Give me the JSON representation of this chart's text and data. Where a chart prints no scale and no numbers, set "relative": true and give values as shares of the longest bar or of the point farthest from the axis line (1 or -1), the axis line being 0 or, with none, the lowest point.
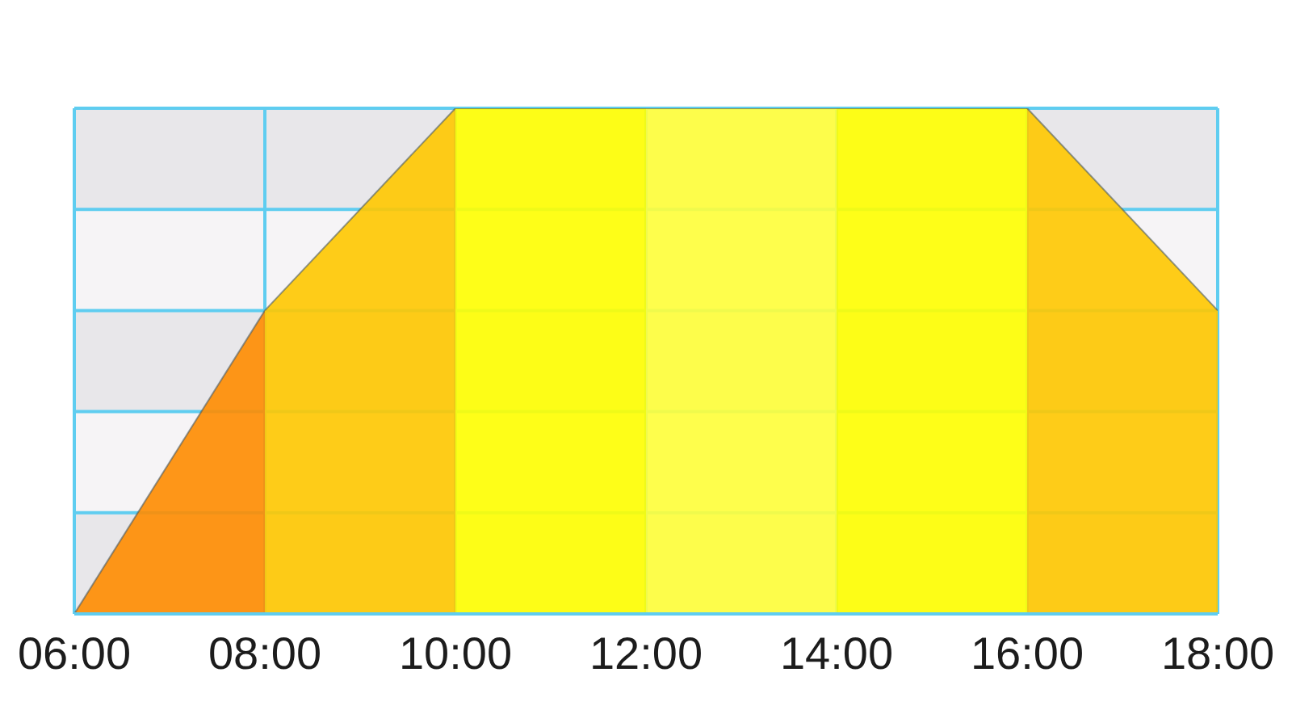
{
  "chart_data": {
    "type": "area",
    "relative": true,
    "grid": true,
    "xlim": [
      6,
      18
    ],
    "xticks": [
      {
        "value": 6,
        "label": "06:00"
      },
      {
        "value": 8,
        "label": "08:00"
      },
      {
        "value": 10,
        "label": "10:00"
      },
      {
        "value": 12,
        "label": "12:00"
      },
      {
        "value": 14,
        "label": "14:00"
      },
      {
        "value": 16,
        "label": "16:00"
      },
      {
        "value": 18,
        "label": "18:00"
      }
    ],
    "bands": [
      {
        "axis": "y",
        "from": 0,
        "to": 0.2,
        "color": "#e8e7ea"
      },
      {
        "axis": "y",
        "from": 0.2,
        "to": 0.4,
        "color": "#f6f4f6"
      },
      {
        "axis": "y",
        "from": 0.4,
        "to": 0.6,
        "color": "#e8e7ea"
      },
      {
        "axis": "y",
        "from": 0.6,
        "to": 0.8,
        "color": "#f6f4f6"
      },
      {
        "axis": "y",
        "from": 0.8,
        "to": 1,
        "color": "#e8e7ea"
      }
    ],
    "series": [
      {
        "x": [
          6,
          8
        ],
        "values": [
          0,
          0.6
        ],
        "color": "#ff8c00"
      },
      {
        "x": [
          8,
          10
        ],
        "values": [
          0.6,
          1
        ],
        "color": "#ffc800"
      },
      {
        "x": [
          10,
          12
        ],
        "values": [
          1,
          1
        ],
        "color": "#ffff00"
      },
      {
        "x": [
          12,
          14
        ],
        "values": [
          1,
          1
        ],
        "color": "#ffff3a"
      },
      {
        "x": [
          14,
          16
        ],
        "values": [
          1,
          1
        ],
        "color": "#ffff00"
      },
      {
        "x": [
          16,
          18
        ],
        "values": [
          1,
          0.6
        ],
        "color": "#ffc800"
      }
    ]
  }
}
